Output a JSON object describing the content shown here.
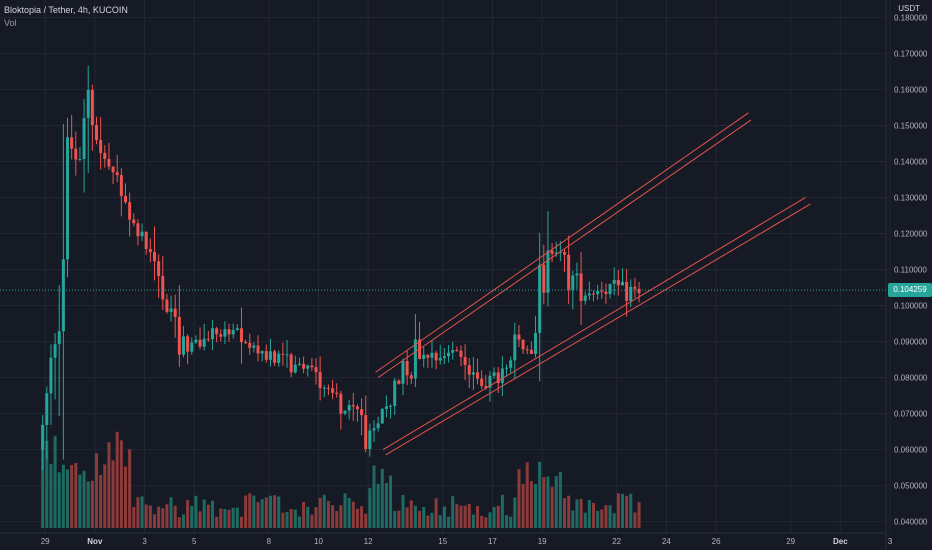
{
  "header": {
    "symbol_line": "Bloktopia / Tether, 4h, KUCOIN",
    "volume_label": "Vol"
  },
  "axis": {
    "unit": "USDT",
    "current_price": "0.104259"
  },
  "colors": {
    "background": "#161a25",
    "grid": "#232733",
    "up": "#26a69a",
    "down": "#ef5350",
    "vol_up": "#1e6b64",
    "vol_down": "#8c3a3a",
    "channel": "#e5534b",
    "price_line": "#26a69a"
  },
  "chart_data": {
    "type": "candlestick",
    "y_ticks": [
      "0.180000",
      "0.170000",
      "0.160000",
      "0.150000",
      "0.140000",
      "0.130000",
      "0.120000",
      "0.110000",
      "0.100000",
      "0.090000",
      "0.080000",
      "0.070000",
      "0.060000",
      "0.050000",
      "0.040000"
    ],
    "ylim": [
      0.0385,
      0.1815
    ],
    "x_ticks": [
      {
        "label": "29",
        "day": -1
      },
      {
        "label": "Nov",
        "day": 1,
        "bold": true
      },
      {
        "label": "3",
        "day": 3
      },
      {
        "label": "5",
        "day": 5
      },
      {
        "label": "8",
        "day": 8
      },
      {
        "label": "10",
        "day": 10
      },
      {
        "label": "12",
        "day": 12
      },
      {
        "label": "15",
        "day": 15
      },
      {
        "label": "17",
        "day": 17
      },
      {
        "label": "19",
        "day": 19
      },
      {
        "label": "22",
        "day": 22
      },
      {
        "label": "24",
        "day": 24
      },
      {
        "label": "26",
        "day": 26
      },
      {
        "label": "29",
        "day": 29
      },
      {
        "label": "Dec",
        "day": 31,
        "bold": true
      },
      {
        "label": "3",
        "day": 33
      }
    ],
    "current_price": 0.104259,
    "price_path": [
      {
        "day": -1.1,
        "price": 0.06
      },
      {
        "day": -0.9,
        "price": 0.066
      },
      {
        "day": -0.6,
        "price": 0.082
      },
      {
        "day": -0.2,
        "price": 0.112
      },
      {
        "day": 0.2,
        "price": 0.144
      },
      {
        "day": 0.6,
        "price": 0.138
      },
      {
        "day": 0.9,
        "price": 0.162
      },
      {
        "day": 1.1,
        "price": 0.152
      },
      {
        "day": 1.4,
        "price": 0.142
      },
      {
        "day": 1.8,
        "price": 0.138
      },
      {
        "day": 2.2,
        "price": 0.131
      },
      {
        "day": 2.7,
        "price": 0.124
      },
      {
        "day": 3.2,
        "price": 0.118
      },
      {
        "day": 3.8,
        "price": 0.106
      },
      {
        "day": 4.4,
        "price": 0.092
      },
      {
        "day": 5.2,
        "price": 0.088
      },
      {
        "day": 6.0,
        "price": 0.093
      },
      {
        "day": 6.8,
        "price": 0.092
      },
      {
        "day": 7.6,
        "price": 0.088
      },
      {
        "day": 8.3,
        "price": 0.086
      },
      {
        "day": 9.0,
        "price": 0.084
      },
      {
        "day": 9.8,
        "price": 0.083
      },
      {
        "day": 10.6,
        "price": 0.077
      },
      {
        "day": 11.2,
        "price": 0.072
      },
      {
        "day": 11.8,
        "price": 0.07
      },
      {
        "day": 12.3,
        "price": 0.061
      },
      {
        "day": 12.8,
        "price": 0.071
      },
      {
        "day": 13.5,
        "price": 0.081
      },
      {
        "day": 14.3,
        "price": 0.088
      },
      {
        "day": 15.0,
        "price": 0.086
      },
      {
        "day": 15.8,
        "price": 0.088
      },
      {
        "day": 16.4,
        "price": 0.079
      },
      {
        "day": 17.2,
        "price": 0.079
      },
      {
        "day": 17.8,
        "price": 0.082
      },
      {
        "day": 18.2,
        "price": 0.091
      },
      {
        "day": 18.7,
        "price": 0.087
      },
      {
        "day": 19.2,
        "price": 0.107
      },
      {
        "day": 19.7,
        "price": 0.116
      },
      {
        "day": 20.3,
        "price": 0.108
      },
      {
        "day": 21.0,
        "price": 0.104
      },
      {
        "day": 21.8,
        "price": 0.105
      },
      {
        "day": 22.4,
        "price": 0.104
      },
      {
        "day": 23.0,
        "price": 0.104
      }
    ],
    "channels": [
      {
        "from": {
          "day": 12.3,
          "price": 0.0815
        },
        "to": {
          "day": 27.3,
          "price": 0.1535
        }
      },
      {
        "from": {
          "day": 12.4,
          "price": 0.08
        },
        "to": {
          "day": 27.4,
          "price": 0.1515
        }
      },
      {
        "from": {
          "day": 12.6,
          "price": 0.06
        },
        "to": {
          "day": 29.6,
          "price": 0.13
        }
      },
      {
        "from": {
          "day": 12.7,
          "price": 0.0585
        },
        "to": {
          "day": 29.8,
          "price": 0.1282
        }
      }
    ]
  }
}
